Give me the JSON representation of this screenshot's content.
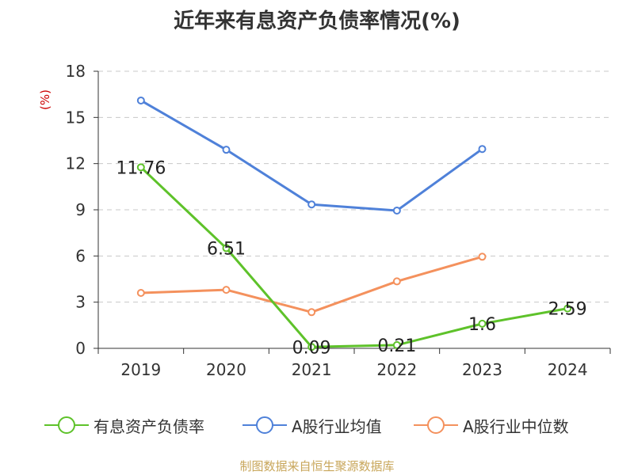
{
  "chart_data": {
    "type": "line",
    "title": "近年来有息资产负债率情况(%)",
    "ylabel": "(%)",
    "categories": [
      "2019",
      "2020",
      "2021",
      "2022",
      "2023",
      "2024"
    ],
    "yticks": [
      "0",
      "3",
      "6",
      "9",
      "12",
      "15",
      "18"
    ],
    "ylim": [
      0,
      18
    ],
    "grid": true,
    "legend_position": "bottom",
    "series": [
      {
        "name": "有息资产负债率",
        "color": "#5ec22a",
        "values": [
          11.76,
          6.51,
          0.09,
          0.21,
          1.6,
          2.59
        ],
        "labels": [
          "11.76",
          "6.51",
          "0.09",
          "0.21",
          "1.6",
          "2.59"
        ]
      },
      {
        "name": "A股行业均值",
        "color": "#4f81d9",
        "values": [
          16.1,
          12.9,
          9.35,
          8.95,
          12.95,
          null
        ]
      },
      {
        "name": "A股行业中位数",
        "color": "#f4915d",
        "values": [
          3.6,
          3.8,
          2.35,
          4.35,
          5.95,
          null
        ]
      }
    ]
  },
  "source": "制图数据来自恒生聚源数据库"
}
